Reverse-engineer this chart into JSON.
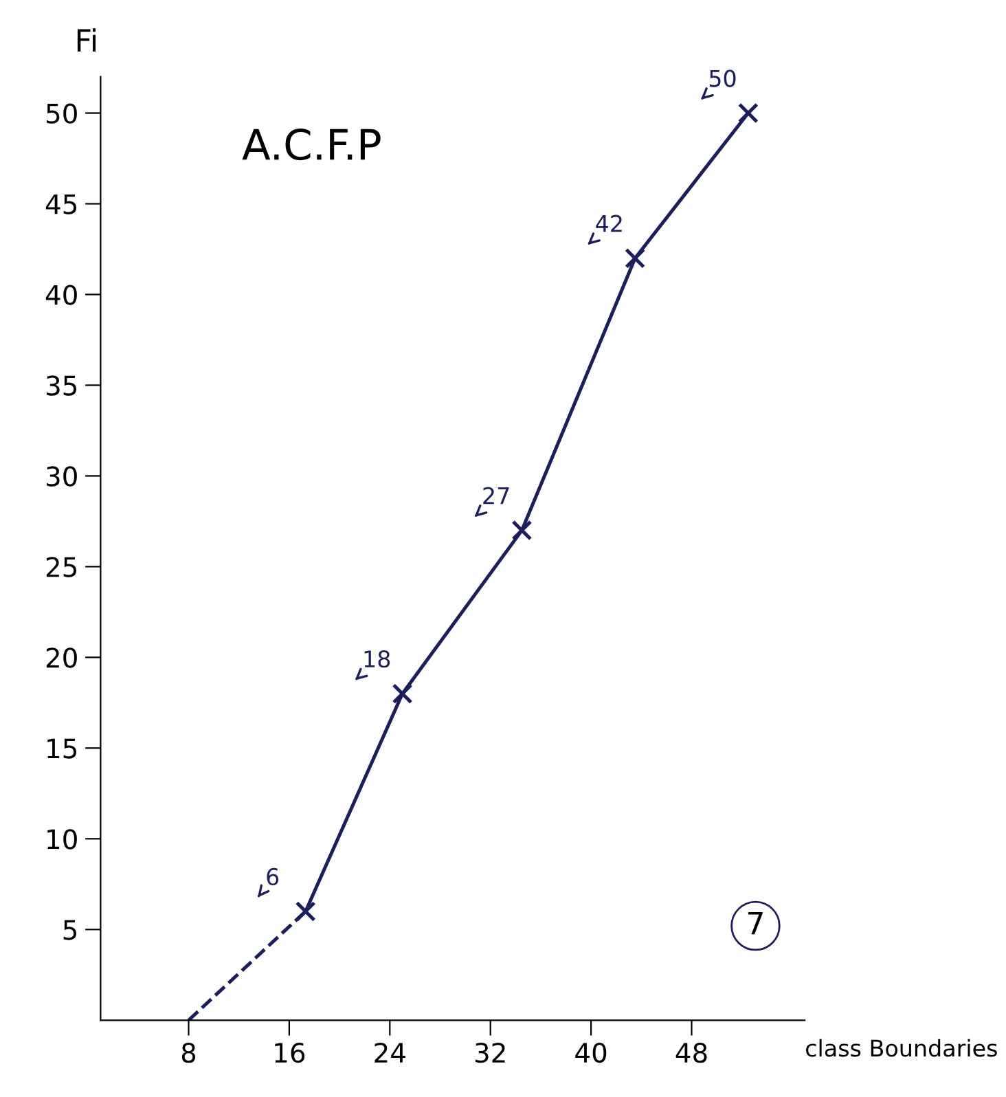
{
  "chart_data": {
    "type": "line",
    "title": "A.C.F.P",
    "xlabel": "class Boundaries",
    "ylabel": "Fi",
    "xlim": [
      1,
      57
    ],
    "xticks": [
      8,
      16,
      24,
      32,
      40,
      48
    ],
    "ylim": [
      0,
      52
    ],
    "yticks": [
      5,
      10,
      15,
      20,
      25,
      30,
      35,
      40,
      45,
      50
    ],
    "grid": false,
    "legend": false,
    "series": [
      {
        "color": "#1c1f5a",
        "x": [
          8,
          17.3
        ],
        "values": [
          0,
          6
        ],
        "line_style": "dashed"
      },
      {
        "color": "#1c1f5a",
        "x": [
          17.3,
          25,
          34.5,
          43.5,
          52.5
        ],
        "values": [
          6,
          18,
          27,
          42,
          50
        ],
        "line_style": "solid",
        "marker": "cross",
        "value_labels": [
          "6",
          "18",
          "27",
          "42",
          "50"
        ]
      }
    ],
    "annotations": [
      "7"
    ]
  }
}
